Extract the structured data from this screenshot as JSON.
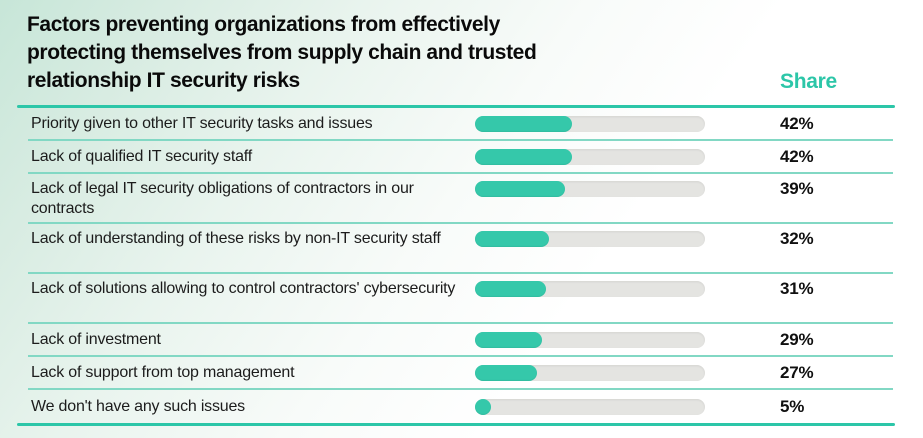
{
  "header": {
    "title_lines": [
      "Factors preventing organizations from effectively",
      "protecting themselves from supply chain and trusted",
      "relationship IT security risks"
    ],
    "share_label": "Share"
  },
  "rows": [
    {
      "label": "Priority given to other IT security tasks and issues",
      "value": 42,
      "value_label": "42%"
    },
    {
      "label": "Lack of qualified IT security staff",
      "value": 42,
      "value_label": "42%"
    },
    {
      "label": "Lack of legal IT security obligations of contractors in our contracts",
      "value": 39,
      "value_label": "39%"
    },
    {
      "label": "Lack of understanding of these risks by non-IT security staff",
      "value": 32,
      "value_label": "32%"
    },
    {
      "label": "Lack of solutions allowing to control contractors' cybersecurity",
      "value": 31,
      "value_label": "31%"
    },
    {
      "label": "Lack of investment",
      "value": 29,
      "value_label": "29%"
    },
    {
      "label": "Lack of support from top management",
      "value": 27,
      "value_label": "27%"
    },
    {
      "label": "We don't have any such issues",
      "value": 5,
      "value_label": "5%"
    }
  ],
  "colors": {
    "accent_teal": "#2cc6a8",
    "bar_fill": "#35c8aa",
    "bar_track": "#e4e4e1",
    "separator": "#82d8c4",
    "title_text": "#0a0a0a",
    "background_tint": "#c7e6d8"
  },
  "chart_data": {
    "type": "bar",
    "orientation": "horizontal",
    "title": "Factors preventing organizations from effectively protecting themselves from supply chain and trusted relationship IT security risks",
    "value_column_label": "Share",
    "categories": [
      "Priority given to other IT security tasks and issues",
      "Lack of qualified IT security staff",
      "Lack of legal IT security obligations of contractors in our contracts",
      "Lack of understanding of these risks by non-IT security staff",
      "Lack of solutions allowing to control contractors' cybersecurity",
      "Lack of investment",
      "Lack of support from top management",
      "We don't have any such issues"
    ],
    "values": [
      42,
      42,
      39,
      32,
      31,
      29,
      27,
      5
    ],
    "unit": "%",
    "xlim": [
      0,
      100
    ],
    "grid": false,
    "legend": false
  }
}
